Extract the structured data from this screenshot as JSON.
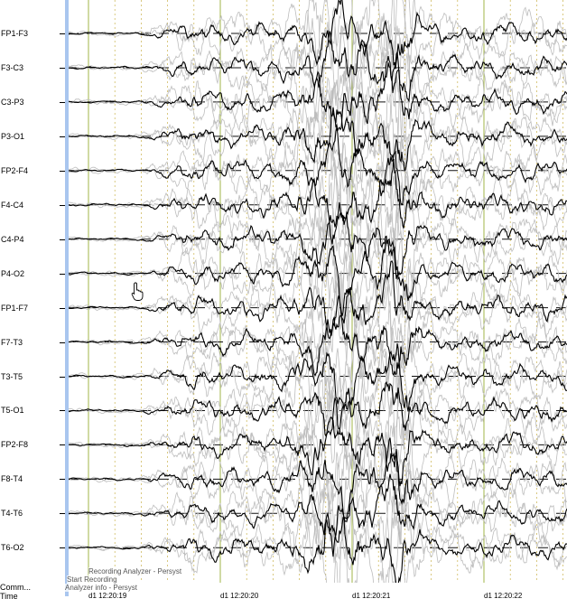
{
  "channels": [
    "FP1-F3",
    "F3-C3",
    "C3-P3",
    "P3-O1",
    "FP2-F4",
    "F4-C4",
    "C4-P4",
    "P4-O2",
    "FP1-F7",
    "F7-T3",
    "T3-T5",
    "T5-O1",
    "FP2-F8",
    "F8-T4",
    "T4-T6",
    "T6-O2"
  ],
  "bottom_rows": {
    "comments": "Comm...",
    "time": "Time"
  },
  "annotations": [
    "Recording Analyzer - Persyst",
    "Start Recording",
    "Analyzer info - Persyst"
  ],
  "time_ticks": [
    "d1 12:20:19",
    "d1 12:20:20",
    "d1 12:20:21",
    "d1 12:20:22"
  ],
  "colors": {
    "trace": "#000000",
    "trace_ghost": "#bdbdbd",
    "baseline": "#111111",
    "second_marker": "#8aa21a",
    "subsecond_marker": "#c9b24a",
    "side_bar": "#a9c6ef"
  },
  "icons": {
    "cursor": "hand-pointer-icon"
  }
}
